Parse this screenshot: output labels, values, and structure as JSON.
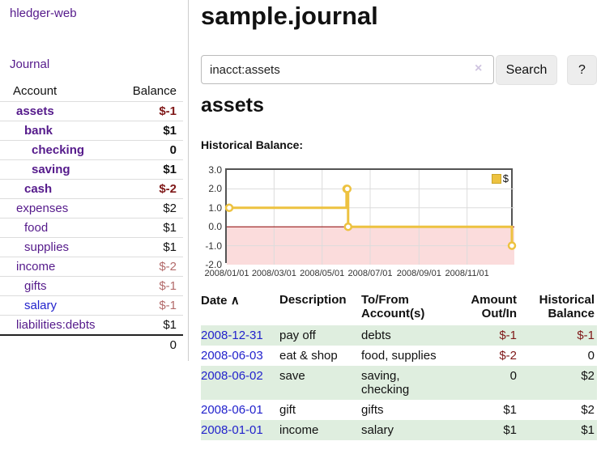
{
  "app": {
    "title": "hledger-web",
    "nav_journal": "Journal"
  },
  "sidebar": {
    "columns": {
      "account": "Account",
      "balance": "Balance"
    },
    "accounts": [
      {
        "name": "assets",
        "depth": 0,
        "balance": "$-1"
      },
      {
        "name": "bank",
        "depth": 1,
        "balance": "$1"
      },
      {
        "name": "checking",
        "depth": 2,
        "balance": "0"
      },
      {
        "name": "saving",
        "depth": 2,
        "balance": "$1"
      },
      {
        "name": "cash",
        "depth": 1,
        "balance": "$-2"
      },
      {
        "name": "expenses",
        "depth": 0,
        "balance": "$2"
      },
      {
        "name": "food",
        "depth": 1,
        "balance": "$1"
      },
      {
        "name": "supplies",
        "depth": 1,
        "balance": "$1"
      },
      {
        "name": "income",
        "depth": 0,
        "balance": "$-2"
      },
      {
        "name": "gifts",
        "depth": 1,
        "balance": "$-1"
      },
      {
        "name": "salary",
        "depth": 1,
        "balance": "$-1"
      },
      {
        "name": "liabilities:debts",
        "depth": 0,
        "balance": "$1"
      }
    ],
    "total": "0"
  },
  "header": {
    "title": "sample.journal"
  },
  "search": {
    "value": "inacct:assets",
    "button_label": "Search",
    "help_label": "?"
  },
  "icons": {
    "clear": "×",
    "sort_asc": "∧"
  },
  "account_page": {
    "title": "assets",
    "chart_heading": "Historical Balance:"
  },
  "chart_data": {
    "type": "line",
    "step": true,
    "title": "Historical Balance",
    "series": [
      {
        "name": "$",
        "color": "#edc240",
        "points": [
          [
            "2008-01-01",
            1
          ],
          [
            "2008-06-01",
            2
          ],
          [
            "2008-06-02",
            2
          ],
          [
            "2008-06-03",
            0
          ],
          [
            "2008-12-31",
            -1
          ]
        ]
      }
    ],
    "xrange": [
      "2008-01-01",
      "2008-12-31"
    ],
    "ylim": [
      -2,
      3
    ],
    "yticks": [
      3.0,
      2.0,
      1.0,
      0.0,
      -1.0,
      -2.0
    ],
    "ytick_labels": [
      "3.0",
      "2.0",
      "1.0",
      "0.0",
      "-1.0",
      "-2.0"
    ],
    "xtick_labels": [
      "2008/01/01",
      "2008/03/01",
      "2008/05/01",
      "2008/07/01",
      "2008/09/01",
      "2008/11/01"
    ],
    "grid": true,
    "legend": {
      "label": "$",
      "position": "top-right"
    },
    "negative_fill": "#fbdcdc",
    "zero_line_color": "#8b0000",
    "grid_color": "#dcdcdc"
  },
  "register_table": {
    "columns": [
      "Date",
      "Description",
      "To/From Account(s)",
      "Amount Out/In",
      "Historical Balance"
    ],
    "rows": [
      {
        "date": "2008-12-31",
        "description": "pay off",
        "accounts": "debts",
        "amount": "$-1",
        "balance": "$-1"
      },
      {
        "date": "2008-06-03",
        "description": "eat & shop",
        "accounts": "food, supplies",
        "amount": "$-2",
        "balance": "0"
      },
      {
        "date": "2008-06-02",
        "description": "save",
        "accounts": "saving,\nchecking",
        "amount": "0",
        "balance": "$2"
      },
      {
        "date": "2008-06-01",
        "description": "gift",
        "accounts": "gifts",
        "amount": "$1",
        "balance": "$2"
      },
      {
        "date": "2008-01-01",
        "description": "income",
        "accounts": "salary",
        "amount": "$1",
        "balance": "$1"
      }
    ]
  },
  "colors": {
    "link_purple": "#551a8b",
    "link_blue": "#2222cc",
    "negative_strong": "#7f1818",
    "negative_faint": "#b36b6b",
    "row_stripe_green": "#dfeedf",
    "series_gold": "#edc240",
    "chart_negative_fill": "#fbdcdc",
    "zero_line": "#8b0000",
    "button_bg": "#ededed"
  }
}
